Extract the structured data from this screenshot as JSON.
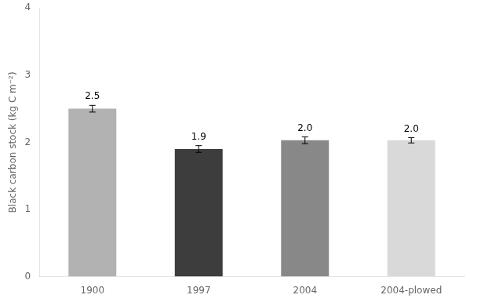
{
  "chart_data": {
    "type": "bar",
    "categories": [
      "1900",
      "1997",
      "2004",
      "2004-plowed"
    ],
    "values": [
      2.5,
      1.9,
      2.03,
      2.03
    ],
    "errors": [
      0.05,
      0.05,
      0.05,
      0.04
    ],
    "value_labels": [
      "2.5",
      "1.9",
      "2.0",
      "2.0"
    ],
    "data_labels": true,
    "colors": [
      "#b2b2b2",
      "#3d3d3d",
      "#888888",
      "#d9d9d9"
    ],
    "ylabel": "Black carbon stock (kg C m⁻²)",
    "ylim": [
      0,
      4
    ],
    "yticks": [
      0,
      1,
      2,
      3,
      4
    ],
    "grid": false
  }
}
